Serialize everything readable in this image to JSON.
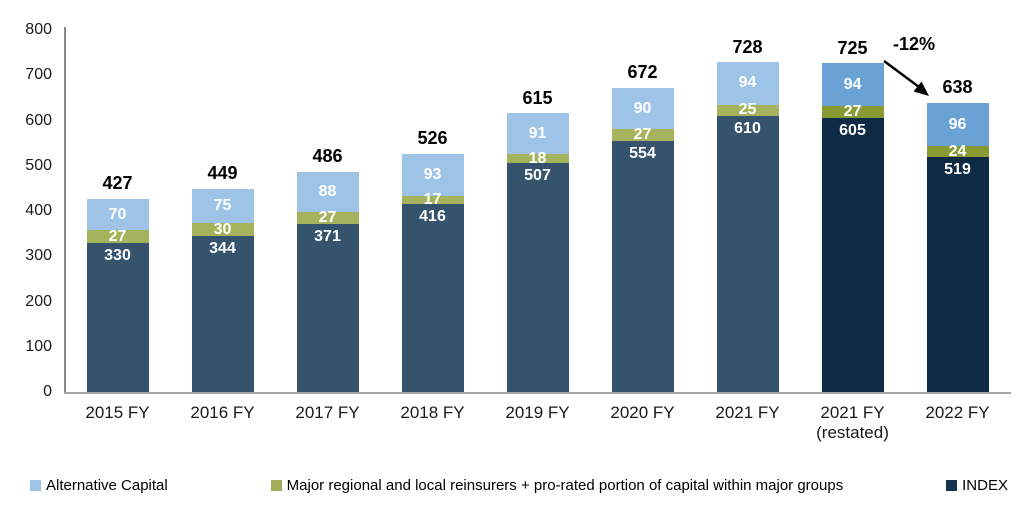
{
  "chart_data": {
    "type": "bar",
    "stacked": true,
    "title": "",
    "xlabel": "",
    "ylabel": "",
    "categories": [
      "2015 FY",
      "2016 FY",
      "2017 FY",
      "2018 FY",
      "2019 FY",
      "2020 FY",
      "2021 FY",
      "2021 FY\n(restated)",
      "2022 FY"
    ],
    "series": [
      {
        "name": "INDEX",
        "values": [
          330,
          344,
          371,
          416,
          507,
          554,
          610,
          605,
          519
        ],
        "color": "#36536e",
        "color_dark": "#0e2a44",
        "label_position": "inside-top"
      },
      {
        "name": "Major regional and local reinsurers + pro-rated portion of capital within major groups",
        "values": [
          27,
          30,
          27,
          17,
          18,
          27,
          25,
          27,
          24
        ],
        "color": "#a5b35c",
        "color_dark": "#8a9a33",
        "label_position": "center"
      },
      {
        "name": "Alternative Capital",
        "values": [
          70,
          75,
          88,
          93,
          91,
          90,
          94,
          94,
          96
        ],
        "color": "#9dc3e6",
        "color_dark": "#6aa2d6",
        "label_position": "center"
      }
    ],
    "totals": [
      427,
      449,
      486,
      526,
      615,
      672,
      728,
      725,
      638
    ],
    "dark_scheme_indices": [
      7,
      8
    ],
    "ylim": [
      0,
      800
    ],
    "yticks": [
      0,
      100,
      200,
      300,
      400,
      500,
      600,
      700,
      800
    ],
    "grid": false,
    "legend_position": "bottom",
    "annotation": {
      "text": "-12%"
    },
    "legend": {
      "entries": [
        {
          "label": "Alternative Capital",
          "color": "#9dc3e6"
        },
        {
          "label": "Major regional and local reinsurers + pro-rated portion of capital within major groups",
          "color": "#a2ab5a"
        },
        {
          "label": "INDEX",
          "color": "#163350"
        }
      ]
    },
    "value_label_color": "#ffffff",
    "total_label_color": "#000000"
  }
}
